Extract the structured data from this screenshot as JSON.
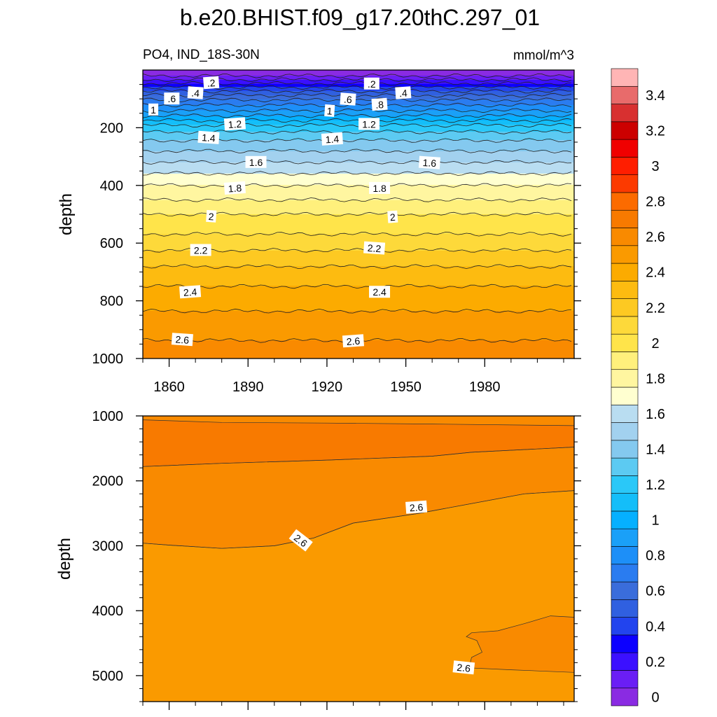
{
  "chart_data": {
    "type": "contour",
    "title": "b.e20.BHIST.f09_g17.20thC.297_01",
    "variable_label": "PO4, IND_18S-30N",
    "units_label": "mmol/m^3",
    "xlim": [
      1850,
      2014
    ],
    "x_ticks": [
      1860,
      1890,
      1920,
      1950,
      1980
    ],
    "x_tick_labels": [
      "1860",
      "1890",
      "1920",
      "1950",
      "1980"
    ],
    "colorbar": {
      "levels": [
        0,
        0.1,
        0.2,
        0.3,
        0.4,
        0.5,
        0.6,
        0.7,
        0.8,
        0.9,
        1.0,
        1.1,
        1.2,
        1.3,
        1.4,
        1.5,
        1.6,
        1.7,
        1.8,
        1.9,
        2.0,
        2.1,
        2.2,
        2.3,
        2.4,
        2.5,
        2.6,
        2.7,
        2.8,
        2.9,
        3.0,
        3.1,
        3.2,
        3.3,
        3.4,
        3.5
      ],
      "tick_labels": [
        "0",
        "0.2",
        "0.4",
        "0.6",
        "0.8",
        "1",
        "1.2",
        "1.4",
        "1.6",
        "1.8",
        "2",
        "2.2",
        "2.4",
        "2.6",
        "2.8",
        "3",
        "3.2",
        "3.4"
      ],
      "colors": [
        "#8a2be2",
        "#6a1ef5",
        "#3b10ff",
        "#0c00ff",
        "#2244ee",
        "#3060e0",
        "#3a6ddb",
        "#2a7cf0",
        "#1d8ff8",
        "#1aa0f8",
        "#05b0ff",
        "#14bef9",
        "#2ac8f8",
        "#5ccaf2",
        "#84c9ef",
        "#a2d1ef",
        "#b9ddf1",
        "#ffffd0",
        "#fff6a0",
        "#fff07c",
        "#ffe44a",
        "#fdd93a",
        "#fdc922",
        "#fdbb10",
        "#fcab00",
        "#fa9a00",
        "#f98a00",
        "#f87a00",
        "#fc6b00",
        "#fc3a00",
        "#ff1e00",
        "#f00000",
        "#cc0000",
        "#d83030",
        "#e86b6b",
        "#ffb5b5"
      ]
    },
    "panels": [
      {
        "name": "upper",
        "ylabel": "depth",
        "ylim": [
          1000,
          0
        ],
        "y_ticks": [
          200,
          400,
          600,
          800,
          1000
        ],
        "y_tick_labels": [
          "200",
          "400",
          "600",
          "800",
          "1000"
        ],
        "profile": {
          "depth": [
            5,
            20,
            40,
            60,
            80,
            100,
            125,
            150,
            175,
            200,
            250,
            300,
            350,
            400,
            450,
            500,
            550,
            600,
            650,
            700,
            750,
            800,
            850,
            900,
            950,
            1000
          ],
          "value": [
            0.0,
            0.1,
            0.25,
            0.4,
            0.55,
            0.68,
            0.82,
            0.95,
            1.1,
            1.25,
            1.42,
            1.55,
            1.68,
            1.8,
            1.9,
            2.0,
            2.07,
            2.15,
            2.25,
            2.33,
            2.4,
            2.45,
            2.52,
            2.57,
            2.61,
            2.63
          ]
        },
        "contour_labels": [
          {
            "text": ".2",
            "year": 1876,
            "depth": 45
          },
          {
            "text": ".2",
            "year": 1937,
            "depth": 48
          },
          {
            "text": ".4",
            "year": 1870,
            "depth": 80
          },
          {
            "text": ".4",
            "year": 1949,
            "depth": 80
          },
          {
            "text": ".6",
            "year": 1861,
            "depth": 100
          },
          {
            "text": ".6",
            "year": 1928,
            "depth": 102
          },
          {
            "text": ".8",
            "year": 1940,
            "depth": 120
          },
          {
            "text": "1",
            "year": 1854,
            "depth": 138
          },
          {
            "text": "1",
            "year": 1921,
            "depth": 142
          },
          {
            "text": "1.2",
            "year": 1885,
            "depth": 188
          },
          {
            "text": "1.2",
            "year": 1936,
            "depth": 188
          },
          {
            "text": "1.4",
            "year": 1875,
            "depth": 235
          },
          {
            "text": "1.4",
            "year": 1922,
            "depth": 240
          },
          {
            "text": "1.6",
            "year": 1893,
            "depth": 320
          },
          {
            "text": "1.6",
            "year": 1959,
            "depth": 322
          },
          {
            "text": "1.8",
            "year": 1885,
            "depth": 410
          },
          {
            "text": "1.8",
            "year": 1940,
            "depth": 410
          },
          {
            "text": "2",
            "year": 1876,
            "depth": 508
          },
          {
            "text": "2",
            "year": 1945,
            "depth": 510
          },
          {
            "text": "2.2",
            "year": 1872,
            "depth": 625
          },
          {
            "text": "2.2",
            "year": 1938,
            "depth": 618
          },
          {
            "text": "2.4",
            "year": 1868,
            "depth": 770
          },
          {
            "text": "2.4",
            "year": 1940,
            "depth": 770
          },
          {
            "text": "2.6",
            "year": 1865,
            "depth": 935
          },
          {
            "text": "2.6",
            "year": 1930,
            "depth": 940
          }
        ]
      },
      {
        "name": "lower",
        "ylabel": "depth",
        "ylim": [
          5400,
          1000
        ],
        "y_ticks": [
          1000,
          2000,
          3000,
          4000,
          5000
        ],
        "y_tick_labels": [
          "1000",
          "2000",
          "3000",
          "4000",
          "5000"
        ],
        "regions": [
          {
            "range": "2.7-2.8",
            "top_boundary": [
              [
                1850,
                1060
              ],
              [
                1880,
                1100
              ],
              [
                1920,
                1110
              ],
              [
                1960,
                1125
              ],
              [
                2014,
                1150
              ]
            ],
            "bottom_boundary": [
              [
                1850,
                1780
              ],
              [
                1880,
                1730
              ],
              [
                1920,
                1680
              ],
              [
                1960,
                1620
              ],
              [
                1975,
                1560
              ],
              [
                2014,
                1480
              ]
            ]
          },
          {
            "range": "2.6-2.7",
            "top_boundary": [
              [
                1850,
                1780
              ],
              [
                1880,
                1730
              ],
              [
                1920,
                1680
              ],
              [
                1960,
                1620
              ],
              [
                1975,
                1560
              ],
              [
                2014,
                1480
              ]
            ],
            "bottom_boundary": [
              [
                1850,
                2960
              ],
              [
                1860,
                2990
              ],
              [
                1880,
                3040
              ],
              [
                1900,
                3000
              ],
              [
                1915,
                2880
              ],
              [
                1930,
                2650
              ],
              [
                1955,
                2500
              ],
              [
                1975,
                2350
              ],
              [
                1995,
                2200
              ],
              [
                2014,
                2150
              ]
            ]
          },
          {
            "range": "2.5-2.6",
            "top_boundary": [
              [
                1850,
                2960
              ],
              [
                1860,
                2990
              ],
              [
                1880,
                3040
              ],
              [
                1900,
                3000
              ],
              [
                1915,
                2880
              ],
              [
                1930,
                2650
              ],
              [
                1955,
                2500
              ],
              [
                1975,
                2350
              ],
              [
                1995,
                2200
              ],
              [
                2014,
                2150
              ]
            ],
            "bottom_boundary": [
              [
                1850,
                5400
              ],
              [
                2014,
                5400
              ]
            ]
          },
          {
            "range": "2.6-2.7",
            "polygon": [
              [
                2014,
                4100
              ],
              [
                2005,
                4080
              ],
              [
                1995,
                4200
              ],
              [
                1985,
                4310
              ],
              [
                1975,
                4340
              ],
              [
                1973,
                4400
              ],
              [
                1977,
                4460
              ],
              [
                1979,
                4640
              ],
              [
                1975,
                4720
              ],
              [
                1974,
                4880
              ],
              [
                1990,
                4910
              ],
              [
                2014,
                4950
              ]
            ]
          }
        ],
        "contour_labels": [
          {
            "text": "2.6",
            "year": 1954,
            "depth": 2410
          },
          {
            "text": "2.6",
            "year": 1910,
            "depth": 2920
          },
          {
            "text": "2.6",
            "year": 1972,
            "depth": 4880
          }
        ]
      }
    ]
  }
}
